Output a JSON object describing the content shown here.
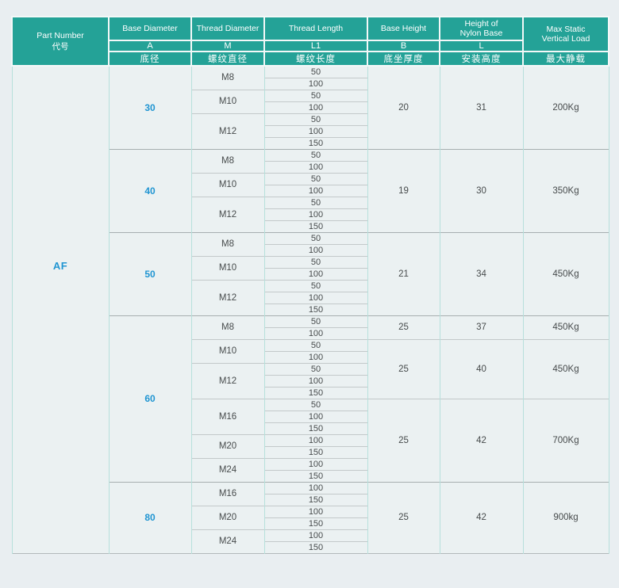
{
  "page": {
    "background": "#e9eef1"
  },
  "colors": {
    "header_teal": "#24a297",
    "accent_blue": "#2095d2",
    "cell_background": "#ebf1f2",
    "grid_teal": "#b7e0dc",
    "hairline_gray": "#c3c9ca",
    "group_line_gray": "#a6aeb0"
  },
  "table": {
    "header": {
      "part_number": {
        "en": "Part Number",
        "zh": "代号"
      },
      "columns": [
        {
          "en": "Base Diameter",
          "letter": "A",
          "zh": "底径"
        },
        {
          "en": "Thread Diameter",
          "letter": "M",
          "zh": "螺纹直径"
        },
        {
          "en": "Thread Length",
          "letter": "L1",
          "zh": "螺纹长度"
        },
        {
          "en": "Base Height",
          "letter": "B",
          "zh": "底坐厚度"
        },
        {
          "en_line1": "Height of",
          "en_line2": "Nylon Base",
          "letter": "L",
          "zh": "安装高度"
        }
      ],
      "max_static": {
        "en_line1": "Max Static",
        "en_line2": "Vertical Load",
        "zh": "最大静载"
      }
    },
    "part_number": "AF",
    "groups": [
      {
        "base_diameter": "30",
        "threads": [
          {
            "m": "M8",
            "lengths": [
              "50",
              "100"
            ]
          },
          {
            "m": "M10",
            "lengths": [
              "50",
              "100"
            ]
          },
          {
            "m": "M12",
            "lengths": [
              "50",
              "100",
              "150"
            ]
          }
        ],
        "specs": [
          {
            "rows": 7,
            "base_height": "20",
            "nylon_height": "31",
            "load": "200Kg"
          }
        ]
      },
      {
        "base_diameter": "40",
        "threads": [
          {
            "m": "M8",
            "lengths": [
              "50",
              "100"
            ]
          },
          {
            "m": "M10",
            "lengths": [
              "50",
              "100"
            ]
          },
          {
            "m": "M12",
            "lengths": [
              "50",
              "100",
              "150"
            ]
          }
        ],
        "specs": [
          {
            "rows": 7,
            "base_height": "19",
            "nylon_height": "30",
            "load": "350Kg"
          }
        ]
      },
      {
        "base_diameter": "50",
        "threads": [
          {
            "m": "M8",
            "lengths": [
              "50",
              "100"
            ]
          },
          {
            "m": "M10",
            "lengths": [
              "50",
              "100"
            ]
          },
          {
            "m": "M12",
            "lengths": [
              "50",
              "100",
              "150"
            ]
          }
        ],
        "specs": [
          {
            "rows": 7,
            "base_height": "21",
            "nylon_height": "34",
            "load": "450Kg"
          }
        ]
      },
      {
        "base_diameter": "60",
        "threads": [
          {
            "m": "M8",
            "lengths": [
              "50",
              "100"
            ]
          },
          {
            "m": "M10",
            "lengths": [
              "50",
              "100"
            ]
          },
          {
            "m": "M12",
            "lengths": [
              "50",
              "100",
              "150"
            ]
          },
          {
            "m": "M16",
            "lengths": [
              "50",
              "100",
              "150"
            ]
          },
          {
            "m": "M20",
            "lengths": [
              "100",
              "150"
            ]
          },
          {
            "m": "M24",
            "lengths": [
              "100",
              "150"
            ]
          }
        ],
        "specs": [
          {
            "rows": 2,
            "base_height": "25",
            "nylon_height": "37",
            "load": "450Kg"
          },
          {
            "rows": 5,
            "base_height": "25",
            "nylon_height": "40",
            "load": "450Kg"
          },
          {
            "rows": 7,
            "base_height": "25",
            "nylon_height": "42",
            "load": "700Kg"
          }
        ]
      },
      {
        "base_diameter": "80",
        "threads": [
          {
            "m": "M16",
            "lengths": [
              "100",
              "150"
            ]
          },
          {
            "m": "M20",
            "lengths": [
              "100",
              "150"
            ]
          },
          {
            "m": "M24",
            "lengths": [
              "100",
              "150"
            ]
          }
        ],
        "specs": [
          {
            "rows": 6,
            "base_height": "25",
            "nylon_height": "42",
            "load": "900kg"
          }
        ]
      }
    ]
  }
}
